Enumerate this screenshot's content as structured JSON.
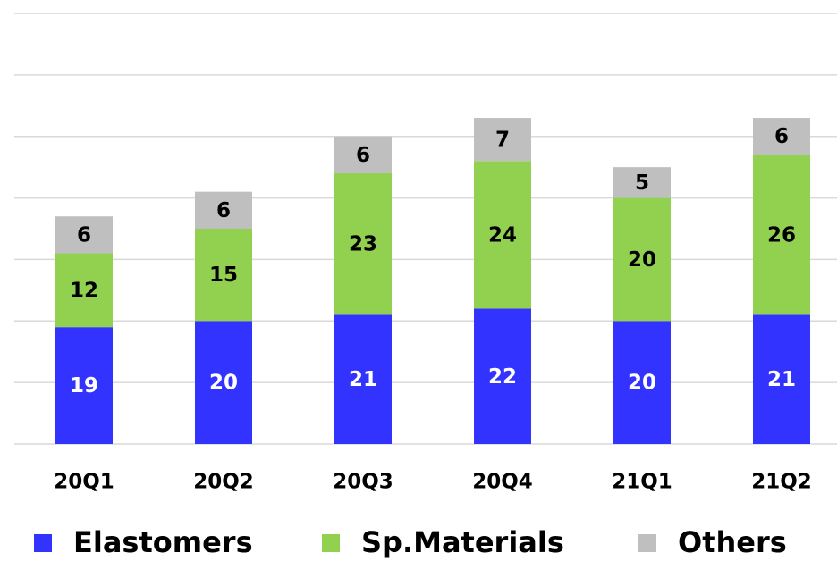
{
  "chart_data": {
    "type": "stacked_bar",
    "categories": [
      "20Q1",
      "20Q2",
      "20Q3",
      "20Q4",
      "21Q1",
      "21Q2"
    ],
    "series": [
      {
        "name": "Elastomers",
        "color": "#3333ff",
        "label_color": "#ffffff",
        "values": [
          19,
          20,
          21,
          22,
          20,
          21
        ]
      },
      {
        "name": "Sp.Materials",
        "color": "#92d050",
        "label_color": "#000000",
        "values": [
          12,
          15,
          23,
          24,
          20,
          26
        ]
      },
      {
        "name": "Others",
        "color": "#bfbfbf",
        "label_color": "#000000",
        "values": [
          6,
          6,
          6,
          7,
          5,
          6
        ]
      }
    ],
    "ylim": [
      0,
      70
    ],
    "yticks": [
      0,
      10,
      20,
      30,
      40,
      50,
      60,
      70
    ],
    "grid": true,
    "legend": "bottom"
  }
}
